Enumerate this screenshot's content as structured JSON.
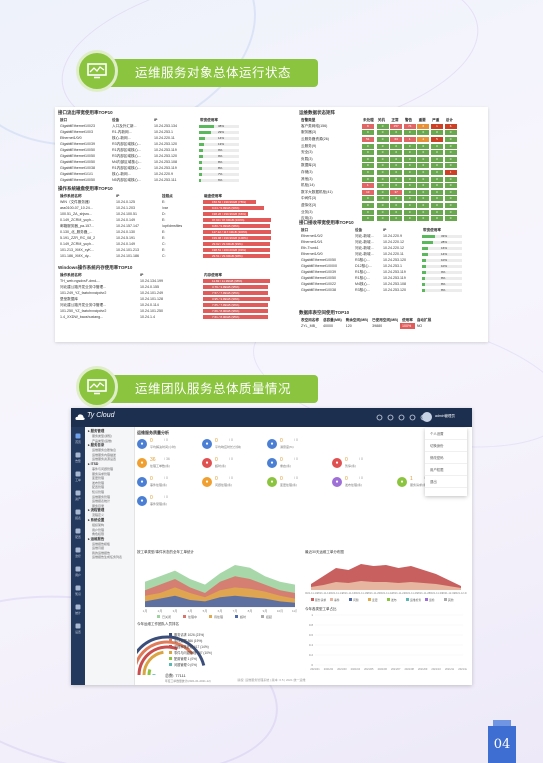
{
  "section1": {
    "title": "运维服务对象总体运行状态",
    "icon": "monitor-chart-icon"
  },
  "section2": {
    "title": "运维团队服务总体质量情况",
    "icon": "monitor-chart-icon"
  },
  "report": {
    "iface_title": "接口流出带宽使用率TOP10",
    "iface_headers": [
      "接口",
      "设备",
      "IP",
      "带宽使用率"
    ],
    "iface_rows": [
      {
        "name": "GigabitEthernet1/0/23",
        "dev": "入口及外汇新...",
        "ip": "10.24.253.134",
        "pct": 38
      },
      {
        "name": "GigabitEthernet1/0/3",
        "dev": "R1-内新网...",
        "ip": "10.24.253.1",
        "pct": 29
      },
      {
        "name": "Ethernet1/0/0",
        "dev": "核心-新网...",
        "ip": "10.24.220.11",
        "pct": 14
      },
      {
        "name": "GigabitEthernet1/0/39",
        "dev": "R3内部区域核心...",
        "ip": "10.24.253.120",
        "pct": 13
      },
      {
        "name": "GigabitEthernet1/0/50",
        "dev": "R1内部区域核心...",
        "ip": "10.24.253.119",
        "pct": 9
      },
      {
        "name": "GigabitEthernet1/0/50",
        "dev": "R3内部区域核心...",
        "ip": "10.24.253.120",
        "pct": 9
      },
      {
        "name": "GigabitEthernet1/0/50",
        "dev": "M4内部区域核心...",
        "ip": "10.24.253.108",
        "pct": 8
      },
      {
        "name": "GigabitEthernet1/0/38",
        "dev": "R1内部区域核心...",
        "ip": "10.24.253.119",
        "pct": 8
      },
      {
        "name": "GigabitEthernet1/1/1",
        "dev": "核心-新网...",
        "ip": "10.24.220.9",
        "pct": 7
      },
      {
        "name": "GigabitEthernet1/0/50",
        "dev": "N5内部区域核心...",
        "ip": "10.24.253.111",
        "pct": 6
      }
    ],
    "linux_title": "操作系统磁盘使用率TOP10",
    "linux_headers": [
      "操作系统名称",
      "IP",
      "挂载点",
      "磁盘使用率"
    ],
    "linux_rows": [
      {
        "name": "WIN（文件服务器）",
        "ip": "10.24.0.125",
        "mount": "E:",
        "val": "156.52 / 199.99GB (78%)",
        "pct": 78
      },
      {
        "name": "ass0100-07_10.24...",
        "ip": "10.24.1.203",
        "mount": "/var",
        "val": "9.04 / 9.99GB (90%)",
        "pct": 90
      },
      {
        "name": "100.51_ZA_shjsru...",
        "ip": "10.24.100.51",
        "mount": "D:",
        "val": "198.26 / 299.99GB (66%)",
        "pct": 66
      },
      {
        "name": "0.149_ZCRM_yuyh...",
        "ip": "10.24.0.149",
        "mount": "E:",
        "val": "97.90 / 97.99GB (100%)",
        "pct": 100
      },
      {
        "name": "邮箱服务器_pa-157...",
        "ip": "10.24.157.147",
        "mount": "/opt/dmsfiles",
        "val": "9.80 / 9.99GB (98%)",
        "pct": 98
      },
      {
        "name": "0.130_北_服务器_...",
        "ip": "10.24.0.130",
        "mount": "E:",
        "val": "117.12 / 117.19GB (100%)",
        "pct": 100
      },
      {
        "name": "5.191_ZZR_RC_08_2",
        "ip": "10.24.5.191",
        "mount": "E:",
        "val": "199.98 / 199.99GB (100%)",
        "pct": 100
      },
      {
        "name": "0.149_ZCRM_yuyh...",
        "ip": "10.24.0.149",
        "mount": "C:",
        "val": "29.92 / 29.99GB (99%)",
        "pct": 99
      },
      {
        "name": "101.213_XMX_xyK...",
        "ip": "10.24.101.213",
        "mount": "E:",
        "val": "198.51 / 200.00GB (99%)",
        "pct": 99
      },
      {
        "name": "101.186_XMX_dy...",
        "ip": "10.24.101.186",
        "mount": "C:",
        "val": "29.51 / 29.99GB (98%)",
        "pct": 98
      }
    ],
    "win_title": "Windows操作系统内存使用率TOP10",
    "win_headers": [
      "操作系统名称",
      "IP",
      "内存使用率"
    ],
    "win_rows": [
      {
        "name": "TH_web.ngsdvsF-dmd-...",
        "ip": "10.24.134.199",
        "val": "11.82 / 11.99GB (98%)",
        "pct": 98
      },
      {
        "name": "河北建公路开发业务中管理...",
        "ip": "10.24.0.155",
        "val": "3.79 / 3.99GB (95%)",
        "pct": 95
      },
      {
        "name": "101.249_YZ_faztchxxcipdvr2",
        "ip": "10.24.101.249",
        "val": "7.57 / 7.99GB (95%)",
        "pct": 95
      },
      {
        "name": "堡垒数据库",
        "ip": "10.24.101.128",
        "val": "3.95 / 3.99GB (99%)",
        "pct": 99
      },
      {
        "name": "河北建公路开发业务中管理...",
        "ip": "10.24.0.114",
        "val": "7.65 / 7.99GB (96%)",
        "pct": 96
      },
      {
        "name": "101.250_YZ_faztchxxcipdvr2",
        "ip": "10.24.101.250",
        "val": "7.66 / 8.00GB (96%)",
        "pct": 96
      },
      {
        "name": "1.4_XXDW_baoshuxiang...",
        "ip": "10.24.1.4",
        "val": "7.61 / 8.00GB (95%)",
        "pct": 95
      }
    ],
    "alarm_title": "运维数据状态矩阵",
    "alarm_headers": [
      "告警类型",
      "未处理",
      "关机",
      "正常",
      "警告",
      "重要",
      "严重",
      "总计"
    ],
    "alarm_rows": [
      {
        "name": "客户类网络(156)",
        "cells": [
          "8",
          "0",
          "257",
          "74",
          "6",
          "1",
          "6"
        ]
      },
      {
        "name": "服务器(3)",
        "cells": [
          "0",
          "0",
          "0",
          "0",
          "0",
          "0",
          "0"
        ]
      },
      {
        "name": "云服务器资源(26)",
        "cells": [
          "51",
          "0",
          "63",
          "1",
          "2",
          "5",
          "0"
        ]
      },
      {
        "name": "云服务(9)",
        "cells": [
          "0",
          "0",
          "0",
          "0",
          "0",
          "0",
          "0"
        ]
      },
      {
        "name": "安全(3)",
        "cells": [
          "0",
          "0",
          "0",
          "0",
          "0",
          "0",
          "0"
        ]
      },
      {
        "name": "负载(3)",
        "cells": [
          "0",
          "0",
          "0",
          "0",
          "0",
          "0",
          "0"
        ]
      },
      {
        "name": "数据库(3)",
        "cells": [
          "0",
          "0",
          "0",
          "0",
          "0",
          "0",
          "0"
        ]
      },
      {
        "name": "存储(3)",
        "cells": [
          "0",
          "0",
          "0",
          "0",
          "0",
          "0",
          "1"
        ]
      },
      {
        "name": "其他(3)",
        "cells": [
          "0",
          "0",
          "0",
          "0",
          "0",
          "0",
          "0"
        ]
      },
      {
        "name": "机柜(14)",
        "cells": [
          "1",
          "0",
          "0",
          "0",
          "0",
          "0",
          "0"
        ]
      },
      {
        "name": "数字大数据机柜(41)",
        "cells": [
          "13",
          "0",
          "37",
          "0",
          "0",
          "0",
          "0"
        ]
      },
      {
        "name": "中间件(3)",
        "cells": [
          "0",
          "0",
          "0",
          "0",
          "0",
          "0",
          "0"
        ]
      },
      {
        "name": "虚拟化(3)",
        "cells": [
          "0",
          "0",
          "0",
          "0",
          "0",
          "0",
          "0"
        ]
      },
      {
        "name": "业务(3)",
        "cells": [
          "0",
          "0",
          "0",
          "0",
          "0",
          "0",
          "0"
        ]
      },
      {
        "name": "应用(3)",
        "cells": [
          "0",
          "0",
          "0",
          "0",
          "0",
          "0",
          "0"
        ]
      }
    ],
    "iface2_title": "接口接收带宽使用率TOP10",
    "iface2_headers": [
      "接口",
      "设备",
      "IP",
      "带宽使用率"
    ],
    "iface2_rows": [
      {
        "name": "Ethernet1/0/2",
        "dev": "河北-新城...",
        "ip": "10.24.220.9",
        "pct": 33
      },
      {
        "name": "Ethernet1/0/1",
        "dev": "河北-新城...",
        "ip": "10.24.220.12",
        "pct": 28
      },
      {
        "name": "Eth-Trunk1",
        "dev": "河北-新城...",
        "ip": "10.24.220.12",
        "pct": 16
      },
      {
        "name": "Ethernet1/0/0",
        "dev": "河北-新城...",
        "ip": "10.24.220.11",
        "pct": 14
      },
      {
        "name": "GigabitEthernet1/0/50",
        "dev": "R3核心...",
        "ip": "10.24.253.120",
        "pct": 10
      },
      {
        "name": "GigabitEthernet1/0/0/0",
        "dev": "D12核心...",
        "ip": "10.24.253.1",
        "pct": 10
      },
      {
        "name": "GigabitEthernet1/0/39",
        "dev": "R1核心...",
        "ip": "10.24.253.119",
        "pct": 9
      },
      {
        "name": "GigabitEthernet1/0/50",
        "dev": "R1核心...",
        "ip": "10.24.253.119",
        "pct": 8
      },
      {
        "name": "GigabitEthernet1/0/22",
        "dev": "M4核心...",
        "ip": "10.24.253.108",
        "pct": 8
      },
      {
        "name": "GigabitEthernet1/0/38",
        "dev": "R3核心...",
        "ip": "10.24.253.120",
        "pct": 8
      }
    ],
    "db_title": "数据库表空间使用TOP10",
    "db_headers": [
      "表空间名称",
      "总容量(MB)",
      "剩余空间(MB)",
      "已使用空间(MB)",
      "使用率",
      "自动扩展"
    ],
    "db_row": [
      "ZYL_MB_",
      "40000",
      "120",
      "39880",
      "100%",
      "NO"
    ]
  },
  "dashboard": {
    "app_name": "Ty Cloud",
    "user": "admin管理员",
    "header_icons": [
      "search-icon",
      "bell-icon",
      "mail-icon",
      "grid-icon",
      "question-icon"
    ],
    "side_icons": [
      "home-icon",
      "alert-icon",
      "ticket-icon",
      "asset-icon",
      "report-icon",
      "config-icon",
      "monitor-icon",
      "user-icon",
      "knowledge-icon",
      "chart-icon",
      "setting-icon"
    ],
    "side_labels": [
      "首页",
      "告警",
      "工单",
      "资产",
      "报表",
      "配置",
      "监控",
      "用户",
      "知识",
      "统计",
      "设置"
    ],
    "menu_groups": [
      {
        "label": "▸ 服务管理",
        "items": [
          "服务类型(通知)",
          "产品类型(运维)"
        ]
      },
      {
        "label": "▸ 服务目录",
        "items": [
          "运维服务台账信息",
          "运维服务内容描述",
          "运维服务资源设置"
        ]
      },
      {
        "label": "▸ ITSD",
        "items": [
          "事件与问题管理",
          "服务请求管理",
          "变更管理",
          "发布管理",
          "配置管理",
          "知识管理",
          "运维服务管理",
          "运维报表统计",
          "服务目录"
        ]
      },
      {
        "label": "▸ 流程管理",
        "items": [
          "流程定义"
        ]
      },
      {
        "label": "▸ 系统设置",
        "items": [
          "组织架构",
          "用户管理",
          "角色权限"
        ]
      },
      {
        "label": "▸ 运维报告",
        "items": [
          "运维报告模板",
          "运维月报",
          "我的运维报告",
          "运维报告生成任务列表"
        ]
      }
    ],
    "main_title": "运维服务质量分析",
    "stats_row1": [
      {
        "n": "0",
        "m": "/ 0",
        "label": "平均解决时间(小时)",
        "color": "#4a7fd4"
      },
      {
        "n": "0",
        "m": "/ 0",
        "label": "平均响应时长(分钟)",
        "color": "#4a7fd4"
      },
      {
        "n": "0",
        "m": "/ 0",
        "label": "满意度(%)",
        "color": "#4a7fd4"
      }
    ],
    "stats_row2": [
      {
        "n": "36",
        "m": "/ 36",
        "label": "处理工单数(条)",
        "color": "#f0a030"
      },
      {
        "n": "0",
        "m": "/ 0",
        "label": "超时(条)",
        "color": "#e05050"
      },
      {
        "n": "0",
        "m": "/ 0",
        "label": "重启(条)",
        "color": "#4a7fd4"
      },
      {
        "n": "0",
        "m": "/ 0",
        "label": "暂停(条)",
        "color": "#e05050"
      }
    ],
    "stats_row3": [
      {
        "n": "0",
        "m": "/ 0",
        "label": "事件处理(条)",
        "color": "#4a7fd4"
      },
      {
        "n": "0",
        "m": "/ 0",
        "label": "问题处理(条)",
        "color": "#f0a030"
      },
      {
        "n": "0",
        "m": "/ 0",
        "label": "变更处理(条)",
        "color": "#8bc43f"
      },
      {
        "n": "0",
        "m": "/ 0",
        "label": "发布处理(条)",
        "color": "#9e6fd6"
      },
      {
        "n": "1",
        "m": "/ 1",
        "label": "服务请求(条)",
        "color": "#8bc43f"
      }
    ],
    "stats_row4": [
      {
        "n": "0",
        "m": "/ 0",
        "label": "事件受理(条)",
        "color": "#4a7fd4"
      }
    ],
    "dropdown": [
      "个人设置",
      "切换身份",
      "修改密码",
      "用户权限",
      "退出"
    ],
    "chart1_title": "按工单类型/事件状态的全年工单统计",
    "chart2_title": "最近30天运维工单分布图",
    "chart3_title": "今年运维工作团队人员排名",
    "chart4_title": "今年各类型工单占比",
    "chart1_legend": [
      "已关闭",
      "处理中",
      "待处理",
      "超时",
      "挂起"
    ],
    "chart2_legend": [
      "服务请求",
      "事件",
      "问题",
      "变更",
      "发布",
      "运维检查",
      "巡检",
      "其他"
    ],
    "chart1_xlabels": [
      "1月",
      "2月",
      "3月",
      "4月",
      "5月",
      "6月",
      "7月",
      "8月",
      "9月",
      "10月",
      "11月"
    ],
    "chart2_xlabels": [
      "2021-11-10",
      "2021-11-12",
      "2021-11-14",
      "2021-11-16",
      "2021-11-18",
      "2021-11-20",
      "2021-11-22",
      "2021-11-24",
      "2021-11-26",
      "2021-11-28",
      "2021-11-30",
      "2021-12-02",
      "2021-12-04"
    ],
    "chart4_xlabels": [
      "2021/01",
      "2021/02",
      "2021/03",
      "2021/04",
      "2021/05",
      "2021/06",
      "2021/07",
      "2021/08",
      "2021/09",
      "2021/10",
      "2021/11",
      "2021/12"
    ],
    "chart4_yticks": [
      "1",
      "0.8",
      "0.6",
      "0.4",
      "0.2",
      "0"
    ],
    "ranking": [
      {
        "label": "服务请求 1026 (23%)",
        "color": "#3b4e7a"
      },
      {
        "label": "事件处理 866 (19%)",
        "color": "#e07b5a"
      },
      {
        "label": "流程审核处理 617 (14%)",
        "color": "#c94d4d"
      },
      {
        "label": "事件与问题管理 437 (10%)",
        "color": "#d9a441"
      },
      {
        "label": "配置管理 1 (0%)",
        "color": "#8bc43f"
      },
      {
        "label": "问题管理 0 (0%)",
        "color": "#5cb8b2"
      }
    ],
    "total_label": "总数: 77111",
    "total_sub": "年度工单数量统计(2021-01-2021-12)",
    "footer": "版权: 运维服务管理系统 | 版本: 6.5 | 2021 统一运维"
  },
  "page_number": "04",
  "colors": {
    "accent_green": "#8bc43f",
    "header_navy": "#1c2f4f",
    "page_badge_blue": "#3e6ed1",
    "bar_green": "#5cb85c",
    "bar_red": "#e25b5b"
  }
}
